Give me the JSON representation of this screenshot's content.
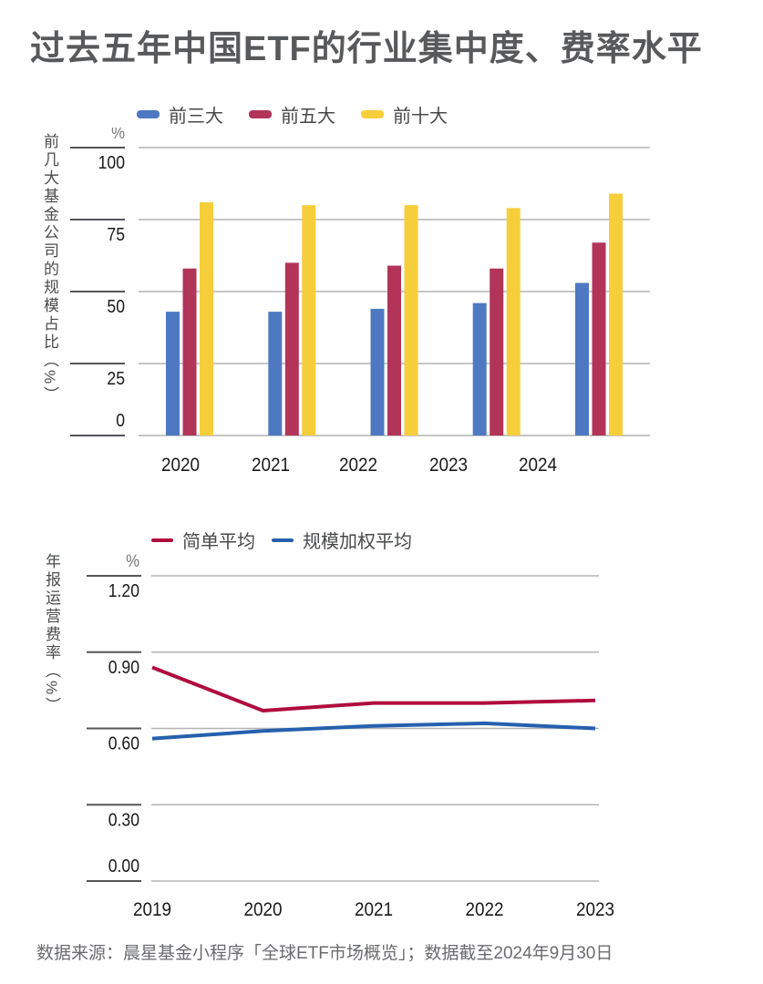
{
  "page": {
    "title": "过去五年中国ETF的行业集中度、费率水平",
    "source": "数据来源：晨星基金小程序「全球ETF市场概览」；数据截至2024年9月30日"
  },
  "colors": {
    "title_text": "#58595B",
    "axis_text": "#1A1A1A",
    "gridline": "#B3B3B3",
    "tick_line_dark": "#55565A",
    "source_text": "#6A6B6E"
  },
  "chart_data": [
    {
      "type": "bar",
      "y_axis_title": "前几大基金公司的规模占比（%）",
      "unit": "%",
      "categories": [
        "2020",
        "2021",
        "2022",
        "2023",
        "2024"
      ],
      "series": [
        {
          "name": "前三大",
          "color": "#4E79C2",
          "values": [
            43,
            43,
            44,
            46,
            53
          ]
        },
        {
          "name": "前五大",
          "color": "#B23459",
          "values": [
            58,
            60,
            59,
            58,
            67
          ]
        },
        {
          "name": "前十大",
          "color": "#F6CE3B",
          "values": [
            81,
            80,
            80,
            79,
            84
          ]
        }
      ],
      "ylim": [
        0,
        100
      ],
      "yticks": [
        "100",
        "75",
        "50",
        "25",
        "0"
      ],
      "legend_position": "top",
      "grid": true
    },
    {
      "type": "line",
      "y_axis_title": "年报运营费率（%）",
      "unit": "%",
      "categories": [
        "2019",
        "2020",
        "2021",
        "2022",
        "2023"
      ],
      "series": [
        {
          "name": "简单平均",
          "color": "#B00C3F",
          "values": [
            0.84,
            0.67,
            0.7,
            0.7,
            0.71
          ]
        },
        {
          "name": "规模加权平均",
          "color": "#2660AE",
          "values": [
            0.56,
            0.59,
            0.61,
            0.62,
            0.6
          ]
        }
      ],
      "ylim": [
        0,
        1.2
      ],
      "yticks": [
        "1.20",
        "0.90",
        "0.60",
        "0.30",
        "0.00"
      ],
      "legend_position": "top",
      "grid": true
    }
  ]
}
